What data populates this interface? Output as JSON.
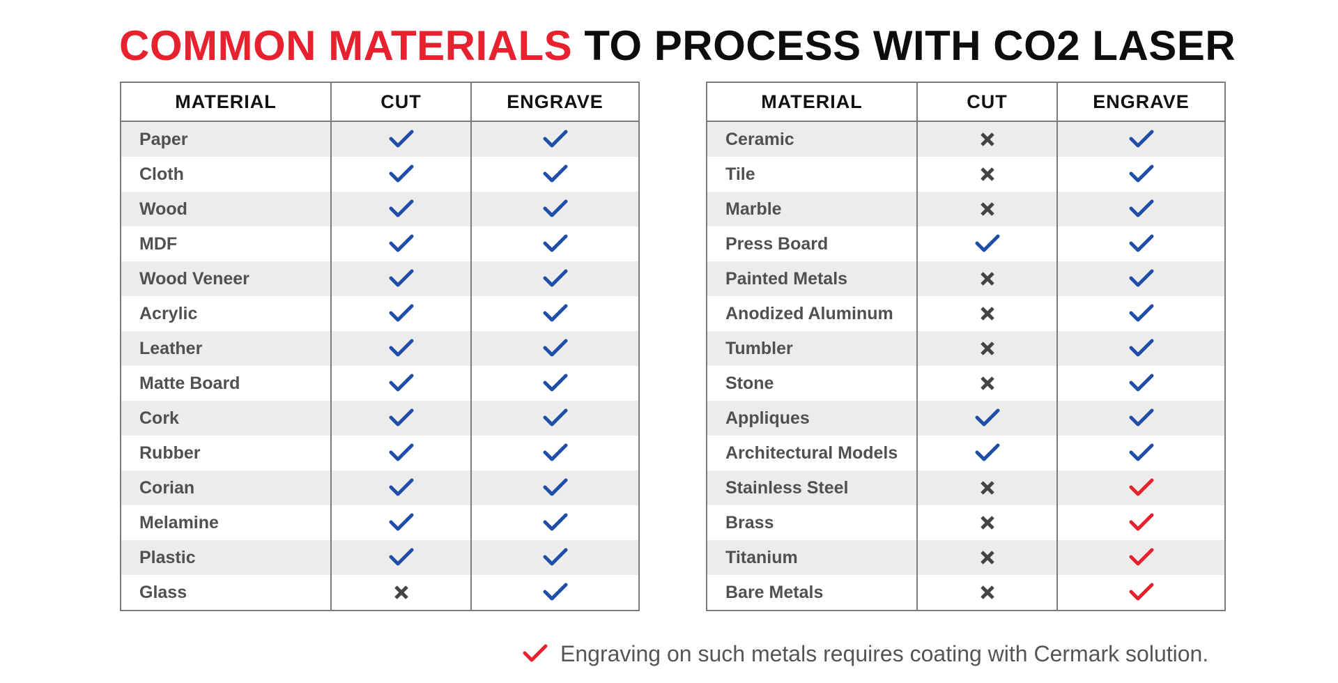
{
  "title": {
    "accent": "COMMON MATERIALS",
    "rest": "TO PROCESS WITH CO2 LASER"
  },
  "colors": {
    "accent": "#e8212f",
    "check_blue": "#1f4ea8",
    "check_red": "#e8212f",
    "cross_gray": "#444444",
    "row_shade": "#ececec",
    "border": "#7b7b7b"
  },
  "icons": {
    "yes": "check-icon",
    "no": "cross-icon",
    "coating": "red-check-icon"
  },
  "left_table": {
    "headers": [
      "MATERIAL",
      "CUT",
      "ENGRAVE"
    ],
    "rows": [
      {
        "material": "Paper",
        "cut": "yes",
        "engrave": "yes"
      },
      {
        "material": "Cloth",
        "cut": "yes",
        "engrave": "yes"
      },
      {
        "material": "Wood",
        "cut": "yes",
        "engrave": "yes"
      },
      {
        "material": "MDF",
        "cut": "yes",
        "engrave": "yes"
      },
      {
        "material": "Wood Veneer",
        "cut": "yes",
        "engrave": "yes"
      },
      {
        "material": "Acrylic",
        "cut": "yes",
        "engrave": "yes"
      },
      {
        "material": "Leather",
        "cut": "yes",
        "engrave": "yes"
      },
      {
        "material": "Matte Board",
        "cut": "yes",
        "engrave": "yes"
      },
      {
        "material": "Cork",
        "cut": "yes",
        "engrave": "yes"
      },
      {
        "material": "Rubber",
        "cut": "yes",
        "engrave": "yes"
      },
      {
        "material": "Corian",
        "cut": "yes",
        "engrave": "yes"
      },
      {
        "material": "Melamine",
        "cut": "yes",
        "engrave": "yes"
      },
      {
        "material": "Plastic",
        "cut": "yes",
        "engrave": "yes"
      },
      {
        "material": "Glass",
        "cut": "no",
        "engrave": "yes"
      }
    ]
  },
  "right_table": {
    "headers": [
      "MATERIAL",
      "CUT",
      "ENGRAVE"
    ],
    "rows": [
      {
        "material": "Ceramic",
        "cut": "no",
        "engrave": "yes"
      },
      {
        "material": "Tile",
        "cut": "no",
        "engrave": "yes"
      },
      {
        "material": "Marble",
        "cut": "no",
        "engrave": "yes"
      },
      {
        "material": "Press Board",
        "cut": "yes",
        "engrave": "yes"
      },
      {
        "material": "Painted Metals",
        "cut": "no",
        "engrave": "yes"
      },
      {
        "material": "Anodized Aluminum",
        "cut": "no",
        "engrave": "yes"
      },
      {
        "material": "Tumbler",
        "cut": "no",
        "engrave": "yes"
      },
      {
        "material": "Stone",
        "cut": "no",
        "engrave": "yes"
      },
      {
        "material": "Appliques",
        "cut": "yes",
        "engrave": "yes"
      },
      {
        "material": "Architectural Models",
        "cut": "yes",
        "engrave": "yes"
      },
      {
        "material": "Stainless Steel",
        "cut": "no",
        "engrave": "coating"
      },
      {
        "material": "Brass",
        "cut": "no",
        "engrave": "coating"
      },
      {
        "material": "Titanium",
        "cut": "no",
        "engrave": "coating"
      },
      {
        "material": "Bare Metals",
        "cut": "no",
        "engrave": "coating"
      }
    ]
  },
  "footnote": {
    "icon": "red-check-icon",
    "text": "Engraving on such metals requires coating with Cermark solution."
  }
}
